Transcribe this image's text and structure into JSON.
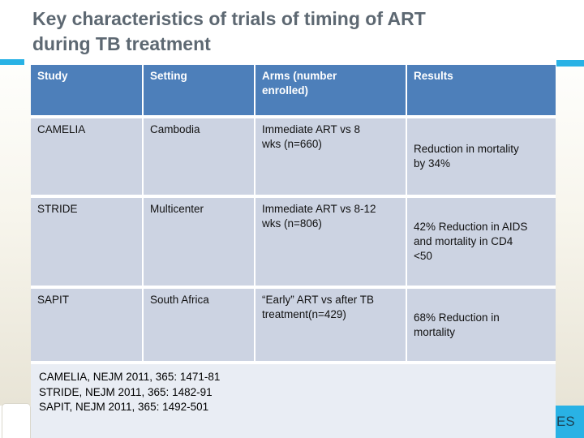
{
  "title": {
    "line1": "Key characteristics of trials of timing of ART",
    "line2": "during TB treatment"
  },
  "table": {
    "columns": [
      "Study",
      "Setting",
      "Arms (number\nenrolled)",
      "Results"
    ],
    "rows": [
      {
        "study": "CAMELIA",
        "setting": "Cambodia",
        "arms": "Immediate ART vs 8\nwks (n=660)",
        "results": "Reduction in mortality\nby 34%"
      },
      {
        "study": "STRIDE",
        "setting": "Multicenter",
        "arms": "Immediate ART vs 8-12\nwks (n=806)",
        "results": "42% Reduction in AIDS\nand mortality in CD4\n<50"
      },
      {
        "study": "SAPIT",
        "setting": "South Africa",
        "arms": "“Early” ART vs after TB\ntreatment(n=429)",
        "results": "68% Reduction in\nmortality"
      }
    ]
  },
  "references": [
    "CAMELIA, NEJM 2011, 365: 1471-81",
    "STRIDE, NEJM 2011, 365: 1482-91",
    "SAPIT, NEJM 2011, 365: 1492-501"
  ],
  "badge_text": "ES",
  "colors": {
    "header_blue": "#4d7fba",
    "row_background": "#ccd3e2",
    "references_panel": "#e9edf4",
    "cyan_accent": "#29b2e5",
    "title_text": "#5d6872",
    "margin_beige": "#e8e4d6",
    "badge_text_color": "#1d4356"
  }
}
